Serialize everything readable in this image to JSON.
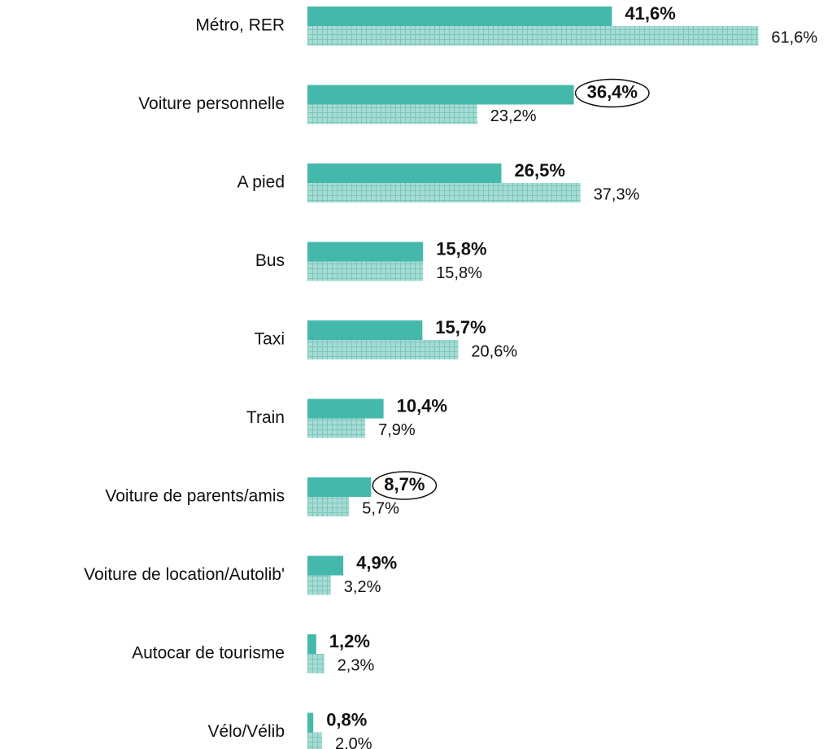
{
  "chart_data": {
    "type": "bar",
    "orientation": "horizontal",
    "categories": [
      "Métro, RER",
      "Voiture personnelle",
      "A pied",
      "Bus",
      "Taxi",
      "Train",
      "Voiture de parents/amis",
      "Voiture de location/Autolib'",
      "Autocar de tourisme",
      "Vélo/Vélib"
    ],
    "series": [
      {
        "color": "#45b8ac",
        "values": [
          41.6,
          36.4,
          26.5,
          15.8,
          15.7,
          10.4,
          8.7,
          4.9,
          1.2,
          0.8
        ],
        "value_labels": [
          "41,6%",
          "36,4%",
          "26,5%",
          "15,8%",
          "15,7%",
          "10,4%",
          "8,7%",
          "4,9%",
          "1,2%",
          "0,8%"
        ],
        "circled": [
          1,
          6
        ]
      },
      {
        "color": "#a6dcd5",
        "values": [
          61.6,
          23.2,
          37.3,
          15.8,
          20.6,
          7.9,
          5.7,
          3.2,
          2.3,
          2.0
        ],
        "value_labels": [
          "61,6%",
          "23,2%",
          "37,3%",
          "15,8%",
          "20,6%",
          "7,9%",
          "5,7%",
          "3,2%",
          "2,3%",
          "2,0%"
        ]
      }
    ]
  }
}
